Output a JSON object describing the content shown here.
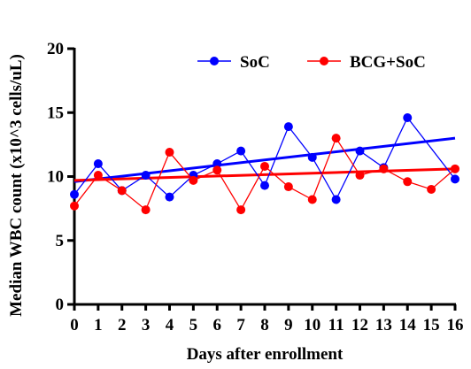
{
  "chart_data": {
    "type": "line",
    "title": "",
    "xlabel": "Days after enrollment",
    "ylabel": "Median WBC count (x10^3 cells/uL)",
    "xlim": [
      0,
      16
    ],
    "ylim": [
      0,
      20
    ],
    "x_ticks": [
      0,
      1,
      2,
      3,
      4,
      5,
      6,
      7,
      8,
      9,
      10,
      11,
      12,
      13,
      14,
      15,
      16
    ],
    "y_ticks": [
      0,
      5,
      10,
      15,
      20
    ],
    "grid": false,
    "legend_position": "top-right",
    "series": [
      {
        "name": "SoC",
        "color": "#0000ff",
        "marker": "circle",
        "x": [
          0,
          1,
          2,
          3,
          4,
          5,
          6,
          7,
          8,
          9,
          10,
          11,
          12,
          13,
          14,
          16
        ],
        "values": [
          8.6,
          11.0,
          8.9,
          10.1,
          8.4,
          10.1,
          11.0,
          12.0,
          9.3,
          13.9,
          11.5,
          8.2,
          12.0,
          10.7,
          14.6,
          9.8
        ],
        "trend": {
          "start": [
            0,
            9.6
          ],
          "end": [
            16,
            13.0
          ]
        }
      },
      {
        "name": "BCG+SoC",
        "color": "#ff0000",
        "marker": "circle",
        "x": [
          0,
          1,
          2,
          3,
          4,
          5,
          6,
          7,
          8,
          9,
          10,
          11,
          12,
          13,
          14,
          15,
          16
        ],
        "values": [
          7.7,
          10.1,
          8.9,
          7.4,
          11.9,
          9.7,
          10.5,
          7.4,
          10.8,
          9.2,
          8.2,
          13.0,
          10.1,
          10.6,
          9.6,
          9.0,
          10.6
        ],
        "trend": {
          "start": [
            0,
            9.7
          ],
          "end": [
            16,
            10.6
          ]
        }
      }
    ]
  }
}
